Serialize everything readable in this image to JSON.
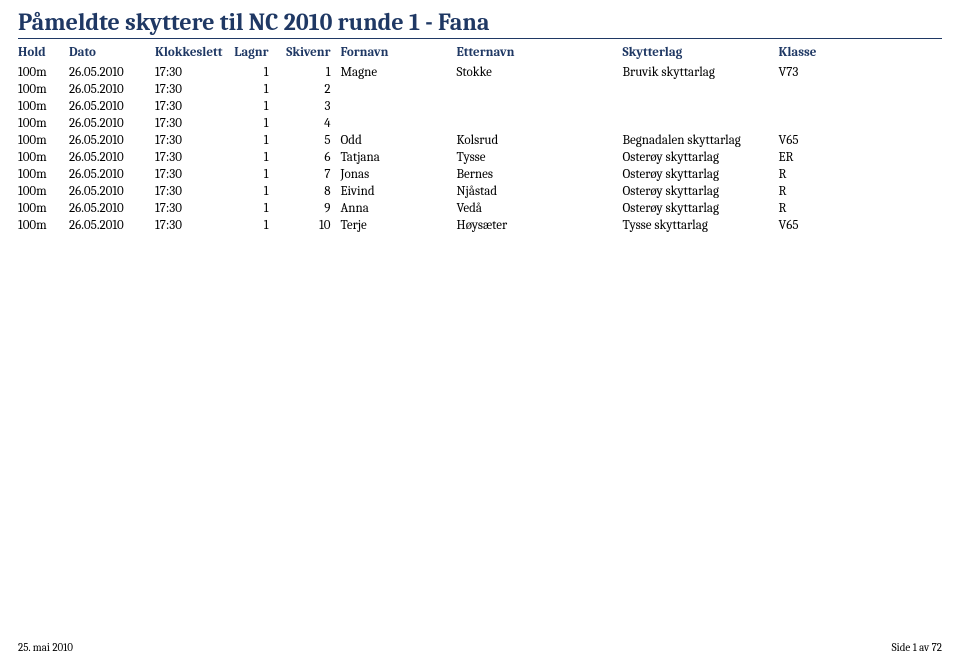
{
  "title": "Påmeldte skyttere til NC 2010 runde 1 - Fana",
  "colors": {
    "heading": "#1f3864",
    "text": "#000000",
    "background": "#ffffff",
    "rule": "#1f3864"
  },
  "columns": {
    "hold": "Hold",
    "dato": "Dato",
    "klokkeslett": "Klokkeslett",
    "lagnr": "Lagnr",
    "skivenr": "Skivenr",
    "fornavn": "Fornavn",
    "etternavn": "Etternavn",
    "skytterlag": "Skytterlag",
    "klasse": "Klasse"
  },
  "rows": [
    {
      "hold": "100m",
      "dato": "26.05.2010",
      "klokke": "17:30",
      "lagnr": "1",
      "skivenr": "1",
      "fornavn": "Magne",
      "etternavn": "Stokke",
      "lag": "Bruvik skyttarlag",
      "klasse": "V73"
    },
    {
      "hold": "100m",
      "dato": "26.05.2010",
      "klokke": "17:30",
      "lagnr": "1",
      "skivenr": "2",
      "fornavn": "",
      "etternavn": "",
      "lag": "",
      "klasse": ""
    },
    {
      "hold": "100m",
      "dato": "26.05.2010",
      "klokke": "17:30",
      "lagnr": "1",
      "skivenr": "3",
      "fornavn": "",
      "etternavn": "",
      "lag": "",
      "klasse": ""
    },
    {
      "hold": "100m",
      "dato": "26.05.2010",
      "klokke": "17:30",
      "lagnr": "1",
      "skivenr": "4",
      "fornavn": "",
      "etternavn": "",
      "lag": "",
      "klasse": ""
    },
    {
      "hold": "100m",
      "dato": "26.05.2010",
      "klokke": "17:30",
      "lagnr": "1",
      "skivenr": "5",
      "fornavn": "Odd",
      "etternavn": "Kolsrud",
      "lag": "Begnadalen skyttarlag",
      "klasse": "V65"
    },
    {
      "hold": "100m",
      "dato": "26.05.2010",
      "klokke": "17:30",
      "lagnr": "1",
      "skivenr": "6",
      "fornavn": "Tatjana",
      "etternavn": "Tysse",
      "lag": "Osterøy skyttarlag",
      "klasse": "ER"
    },
    {
      "hold": "100m",
      "dato": "26.05.2010",
      "klokke": "17:30",
      "lagnr": "1",
      "skivenr": "7",
      "fornavn": "Jonas",
      "etternavn": "Bernes",
      "lag": "Osterøy skyttarlag",
      "klasse": "R"
    },
    {
      "hold": "100m",
      "dato": "26.05.2010",
      "klokke": "17:30",
      "lagnr": "1",
      "skivenr": "8",
      "fornavn": "Eivind",
      "etternavn": "Njåstad",
      "lag": "Osterøy skyttarlag",
      "klasse": "R"
    },
    {
      "hold": "100m",
      "dato": "26.05.2010",
      "klokke": "17:30",
      "lagnr": "1",
      "skivenr": "9",
      "fornavn": "Anna",
      "etternavn": "Vedå",
      "lag": "Osterøy skyttarlag",
      "klasse": "R"
    },
    {
      "hold": "100m",
      "dato": "26.05.2010",
      "klokke": "17:30",
      "lagnr": "1",
      "skivenr": "10",
      "fornavn": "Terje",
      "etternavn": "Høysæter",
      "lag": "Tysse skyttarlag",
      "klasse": "V65"
    }
  ],
  "footer": {
    "left": "25. mai 2010",
    "right": "Side 1 av 72"
  }
}
